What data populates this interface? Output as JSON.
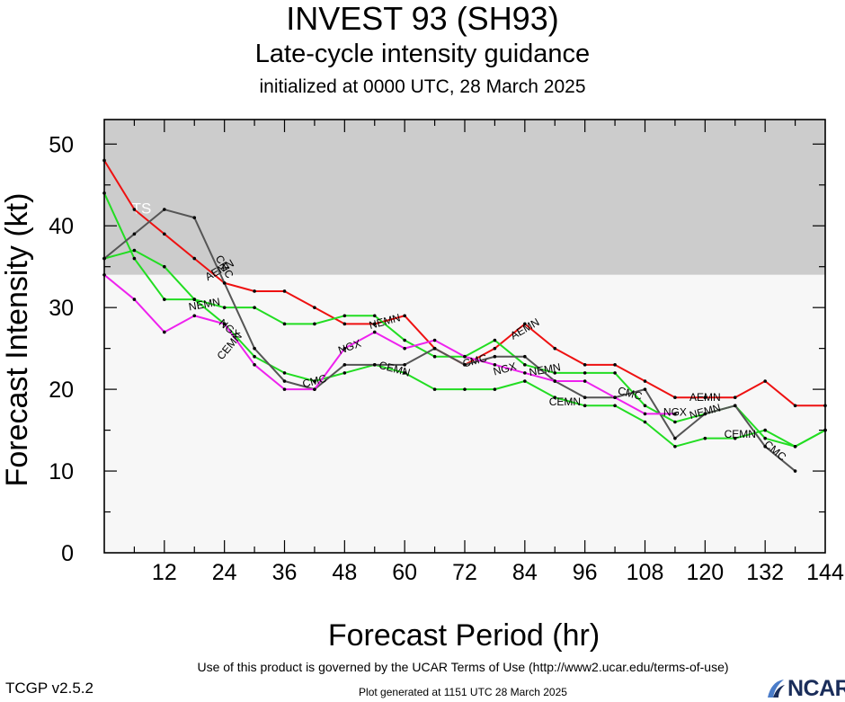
{
  "header": {
    "title": "INVEST 93 (SH93)",
    "subtitle": "Late-cycle intensity guidance",
    "subsubtitle": "initialized at 0000 UTC, 28 March 2025"
  },
  "footer": {
    "version": "TCGP v2.5.2",
    "terms": "Use of this product is governed by the UCAR Terms of Use (http://www2.ucar.edu/terms-of-use)",
    "generated": "Plot generated at 1151 UTC   28 March 2025",
    "logo_text": "NCAR"
  },
  "chart_data": {
    "type": "line",
    "xlabel": "Forecast Period (hr)",
    "ylabel": "Forecast Intensity (kt)",
    "xlim": [
      0,
      144
    ],
    "ylim": [
      0,
      53
    ],
    "xticks": [
      "12",
      "24",
      "36",
      "48",
      "60",
      "72",
      "84",
      "96",
      "108",
      "120",
      "132",
      "144"
    ],
    "yticks": [
      "0",
      "10",
      "20",
      "30",
      "40",
      "50"
    ],
    "bands": [
      {
        "label": "TS",
        "from": 34,
        "to": 53,
        "color": "#cccccc"
      },
      {
        "label": "",
        "from": 0,
        "to": 34,
        "color": "#f7f7f7"
      }
    ],
    "series": [
      {
        "name": "AEMN",
        "color": "#ee1111",
        "x": [
          0,
          6,
          12,
          18,
          24,
          30,
          36,
          42,
          48,
          54,
          60,
          66,
          72,
          78,
          84,
          90,
          96,
          102,
          108,
          114,
          120,
          126,
          132,
          138,
          144
        ],
        "y": [
          48,
          42,
          39,
          36,
          33,
          32,
          32,
          30,
          28,
          28,
          29,
          25,
          23,
          25,
          28,
          25,
          23,
          23,
          21,
          19,
          19,
          19,
          21,
          18,
          18
        ],
        "labels": [
          {
            "x": 23,
            "y": 34.6,
            "angle": 30
          },
          {
            "x": 84,
            "y": 27.4,
            "angle": 30
          },
          {
            "x": 120,
            "y": 19,
            "angle": 0
          }
        ]
      },
      {
        "name": "NEMN",
        "color": "#22dd22",
        "x": [
          0,
          6,
          12,
          18,
          24,
          30,
          36,
          42,
          48,
          54,
          60,
          66,
          72,
          78,
          84,
          90,
          96,
          102,
          108,
          114,
          120,
          126,
          132,
          138,
          144
        ],
        "y": [
          44,
          36,
          31,
          31,
          30,
          30,
          28,
          28,
          29,
          29,
          26,
          24,
          24,
          26,
          23,
          22,
          22,
          22,
          18,
          16,
          17,
          18,
          14,
          13,
          15
        ],
        "labels": [
          {
            "x": 20,
            "y": 30.4,
            "angle": 10
          },
          {
            "x": 56,
            "y": 28.3,
            "angle": 15
          },
          {
            "x": 88,
            "y": 22.4,
            "angle": 10
          },
          {
            "x": 120,
            "y": 17.3,
            "angle": 15
          }
        ]
      },
      {
        "name": "CEMN",
        "color": "#22dd22",
        "x": [
          0,
          6,
          12,
          18,
          24,
          30,
          36,
          42,
          48,
          54,
          60,
          66,
          72,
          78,
          84,
          90,
          96,
          102,
          108,
          114,
          120,
          126,
          132,
          138,
          144
        ],
        "y": [
          36,
          37,
          35,
          31,
          28,
          24,
          22,
          21,
          22,
          23,
          22,
          20,
          20,
          20,
          21,
          19,
          18,
          18,
          16,
          13,
          14,
          14,
          15,
          13,
          15
        ],
        "labels": [
          {
            "x": 25,
            "y": 25.3,
            "angle": 50
          },
          {
            "x": 58,
            "y": 22.5,
            "angle": -15
          },
          {
            "x": 92,
            "y": 18.5,
            "angle": 0
          },
          {
            "x": 127,
            "y": 14.5,
            "angle": 0
          }
        ]
      },
      {
        "name": "CMC",
        "color": "#555555",
        "x": [
          0,
          6,
          12,
          18,
          24,
          30,
          36,
          42,
          48,
          54,
          60,
          66,
          72,
          78,
          84,
          90,
          96,
          102,
          108,
          114,
          120,
          126,
          132,
          138
        ],
        "y": [
          36,
          39,
          42,
          41,
          33,
          25,
          21,
          20,
          23,
          23,
          23,
          25,
          23,
          24,
          24,
          21,
          19,
          19,
          20,
          14,
          17,
          18,
          13,
          10
        ],
        "labels": [
          {
            "x": 24,
            "y": 35.0,
            "angle": -60
          },
          {
            "x": 42,
            "y": 21.0,
            "angle": 15
          },
          {
            "x": 74,
            "y": 23.5,
            "angle": 15
          },
          {
            "x": 105,
            "y": 19.5,
            "angle": -15
          },
          {
            "x": 134,
            "y": 12.5,
            "angle": -40
          }
        ]
      },
      {
        "name": "NGX",
        "color": "#ee22ee",
        "x": [
          0,
          6,
          12,
          18,
          24,
          30,
          36,
          42,
          48,
          54,
          60,
          66,
          72,
          78,
          84,
          90,
          96,
          102,
          108,
          114
        ],
        "y": [
          34,
          31,
          27,
          29,
          28,
          23,
          20,
          20,
          25,
          27,
          25,
          26,
          24,
          23,
          22,
          21,
          21,
          19,
          17,
          17
        ],
        "labels": [
          {
            "x": 25,
            "y": 27.4,
            "angle": -40
          },
          {
            "x": 49,
            "y": 25.2,
            "angle": 20
          },
          {
            "x": 80,
            "y": 22.5,
            "angle": 15
          },
          {
            "x": 114,
            "y": 17.2,
            "angle": 0
          }
        ]
      }
    ]
  }
}
